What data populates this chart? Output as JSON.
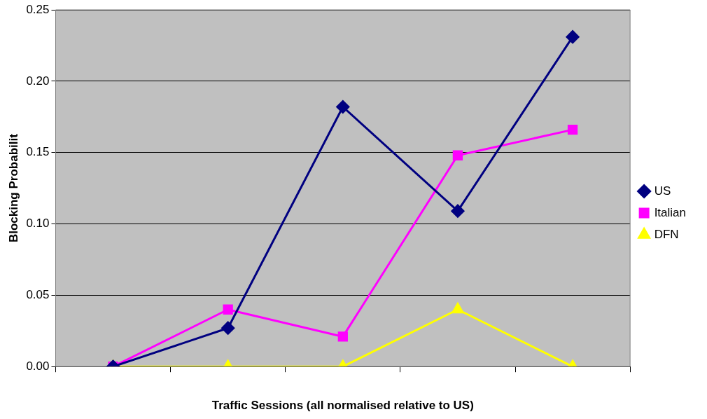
{
  "chart_data": {
    "type": "line",
    "xlabel": "Traffic Sessions (all normalised relative to US)",
    "ylabel": "Blocking Probabilit",
    "categories": [
      null,
      null,
      null,
      null,
      null
    ],
    "series": [
      {
        "name": "US",
        "color": "#000080",
        "marker": "diamond",
        "values": [
          0,
          0.027,
          0.182,
          0.109,
          0.231
        ]
      },
      {
        "name": "Italian",
        "color": "#ff00ff",
        "marker": "square",
        "values": [
          0,
          0.04,
          0.021,
          0.148,
          0.166
        ]
      },
      {
        "name": "DFN",
        "color": "#ffff00",
        "marker": "triangle",
        "values": [
          0,
          0,
          0,
          0.04,
          0
        ]
      }
    ],
    "ylim": [
      0,
      0.25
    ],
    "yticks": [
      {
        "value": 0,
        "label": "0.00"
      },
      {
        "value": 0.05,
        "label": "0.05"
      },
      {
        "value": 0.1,
        "label": "0.10"
      },
      {
        "value": 0.15,
        "label": "0.15"
      },
      {
        "value": 0.2,
        "label": "0.20"
      },
      {
        "value": 0.25,
        "label": "0.25"
      }
    ],
    "grid": "y",
    "legend": "right"
  }
}
